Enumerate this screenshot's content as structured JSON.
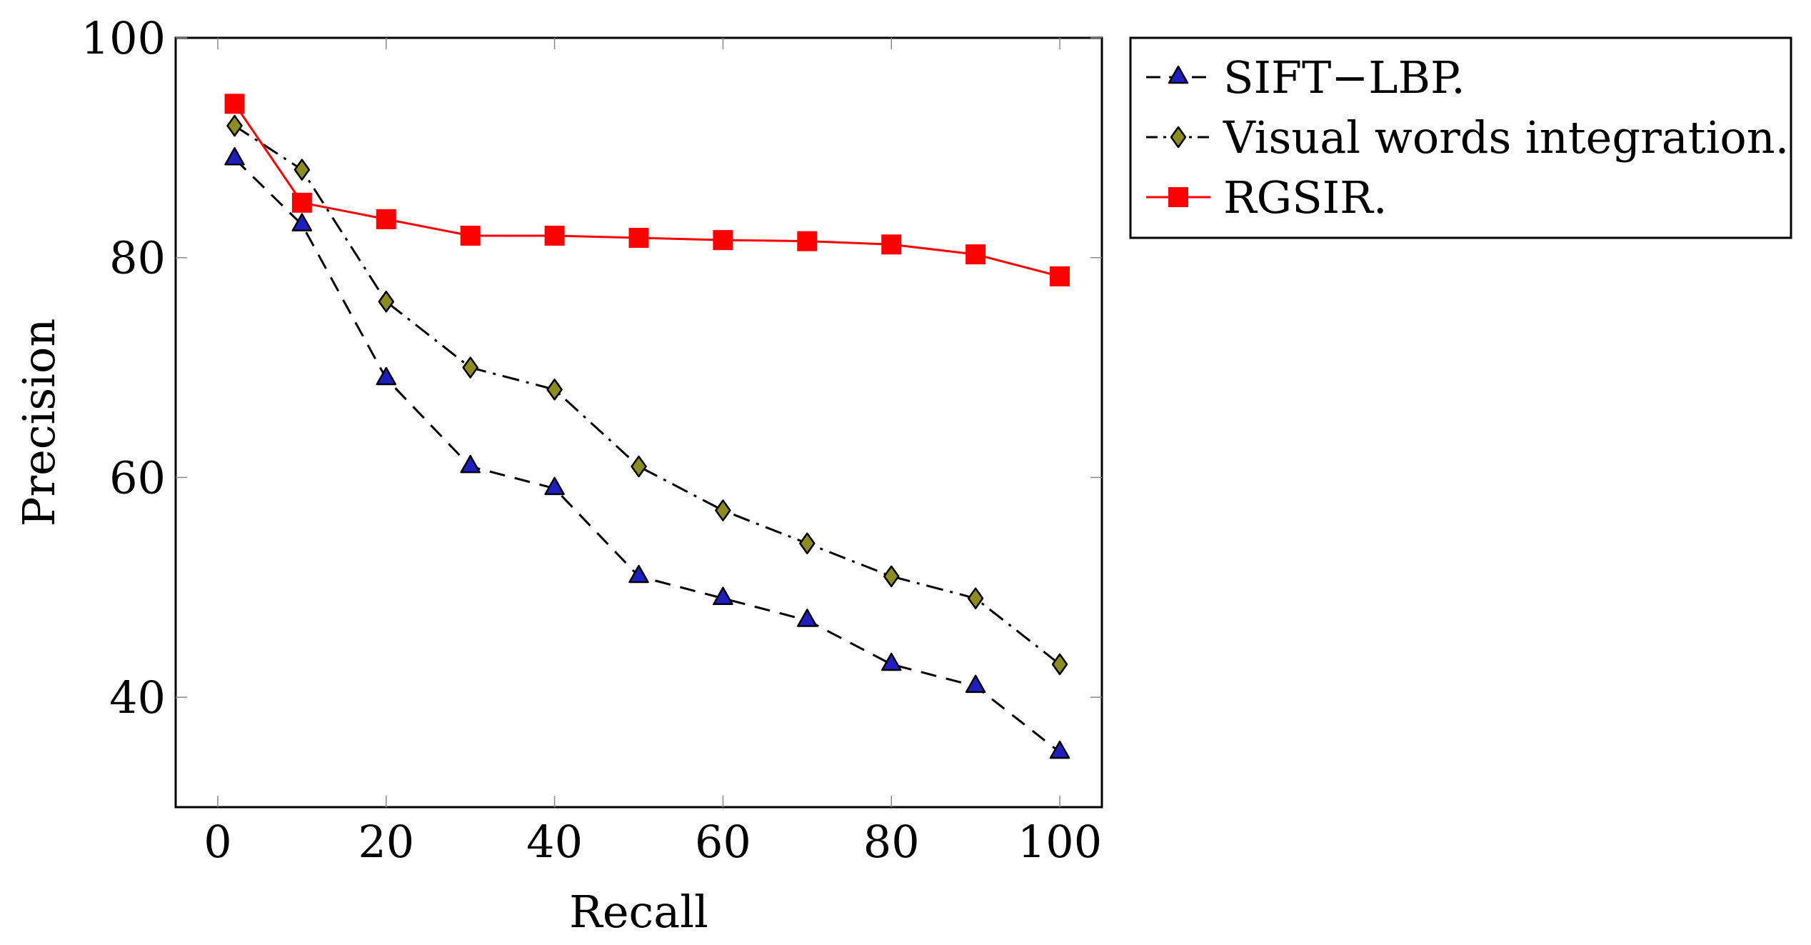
{
  "chart_data": {
    "type": "line",
    "title": "",
    "xlabel": "Recall",
    "ylabel": "Precision",
    "xlim": [
      -5,
      105
    ],
    "ylim": [
      30,
      100
    ],
    "x_ticks": [
      0,
      20,
      40,
      60,
      80,
      100
    ],
    "y_ticks": [
      40,
      60,
      80,
      100
    ],
    "grid": false,
    "legend_position": "outside-right-top",
    "x": [
      2,
      10,
      20,
      30,
      40,
      50,
      60,
      70,
      80,
      90,
      100
    ],
    "series": [
      {
        "name": "SIFT−LBP.",
        "marker": "triangle",
        "line_style": "dashed",
        "line_color": "#000000",
        "marker_color": "#1f1fbf",
        "values": [
          89,
          83,
          69,
          61,
          59,
          51,
          49,
          47,
          43,
          41,
          35
        ]
      },
      {
        "name": "Visual words integration.",
        "marker": "diamond",
        "line_style": "dashdot",
        "line_color": "#000000",
        "marker_color": "#8c8c1f",
        "values": [
          92,
          88,
          76,
          70,
          68,
          61,
          57,
          54,
          51,
          49,
          43
        ]
      },
      {
        "name": "RGSIR.",
        "marker": "square",
        "line_style": "solid",
        "line_color": "#ff0000",
        "marker_color": "#ff0000",
        "values": [
          94,
          85,
          83.5,
          82,
          82,
          81.8,
          81.6,
          81.5,
          81.2,
          80.3,
          78.3
        ]
      }
    ]
  }
}
